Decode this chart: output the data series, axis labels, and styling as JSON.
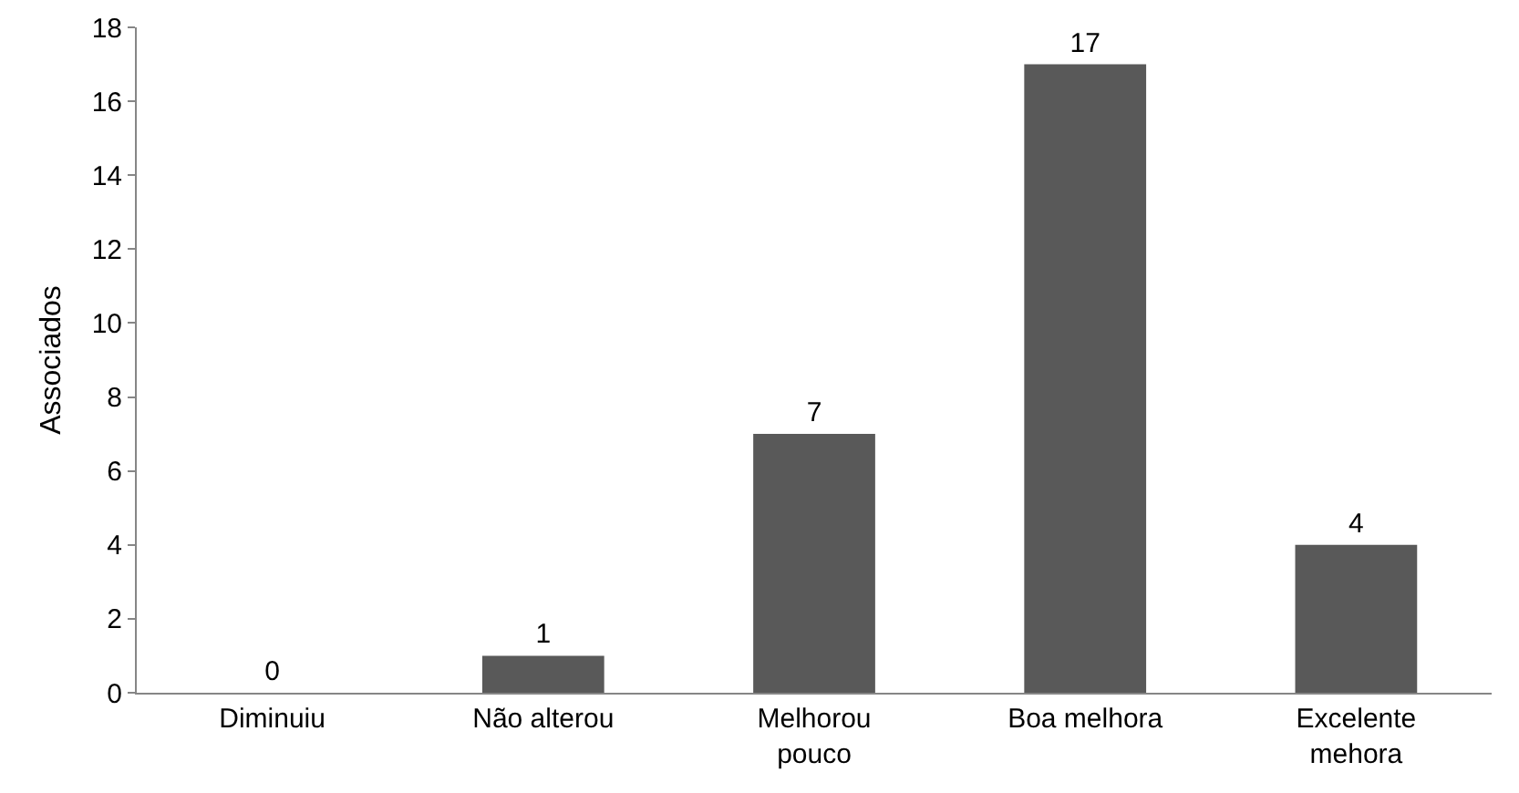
{
  "chart_data": {
    "type": "bar",
    "ylabel": "Associados",
    "categories": [
      "Diminuiu",
      "Não alterou",
      "Melhorou pouco",
      "Boa melhora",
      "Excelente mehora"
    ],
    "values": [
      0,
      1,
      7,
      17,
      4
    ],
    "color": "#595959",
    "ylim": [
      0,
      18
    ],
    "yticks": [
      0,
      2,
      4,
      6,
      8,
      10,
      12,
      14,
      16,
      18
    ],
    "grid": false,
    "data_labels": true
  }
}
